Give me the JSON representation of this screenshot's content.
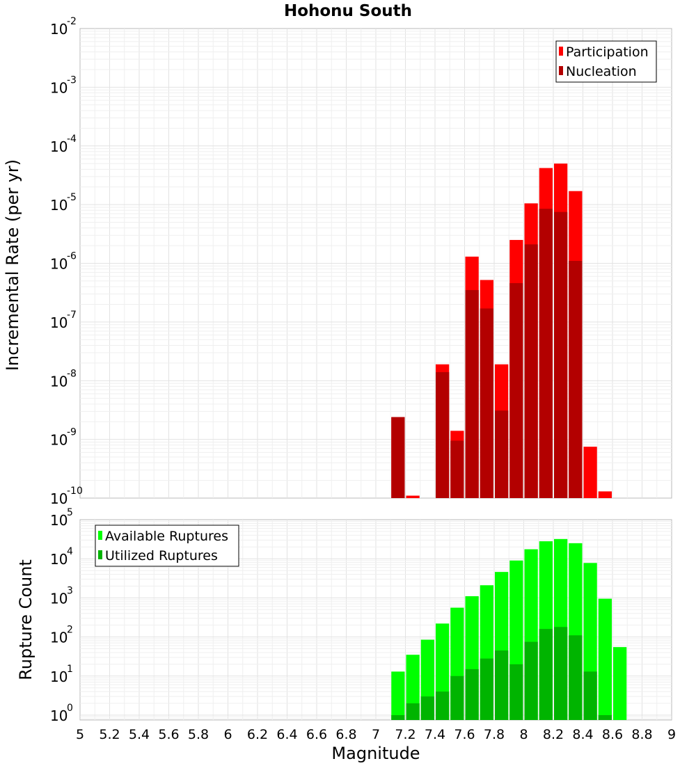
{
  "chart_data": [
    {
      "type": "bar",
      "title": "Hohonu South",
      "ylabel": "Incremental Rate (per yr)",
      "xlabel": "",
      "xlim": [
        5,
        9
      ],
      "ylim": [
        1e-10,
        0.01
      ],
      "yscale": "log",
      "ytick_exponents": [
        "-10",
        "-9",
        "-8",
        "-7",
        "-6",
        "-5",
        "-4",
        "-3",
        "-2"
      ],
      "ytick_base": "10",
      "bar_width": 0.1,
      "legend_position": "top-right",
      "series": [
        {
          "name": "Participation",
          "color": "#ff0000",
          "x": [
            7.15,
            7.25,
            7.45,
            7.55,
            7.65,
            7.75,
            7.85,
            7.95,
            8.05,
            8.15,
            8.25,
            8.35,
            8.45,
            8.55
          ],
          "values": [
            2.4e-09,
            1.1e-10,
            1.9e-08,
            1.4e-09,
            1.3e-06,
            5.2e-07,
            1.9e-08,
            2.5e-06,
            1.05e-05,
            4.2e-05,
            5e-05,
            1.7e-05,
            7.5e-10,
            1.3e-10
          ]
        },
        {
          "name": "Nucleation",
          "color": "#b30000",
          "x": [
            7.15,
            7.45,
            7.55,
            7.65,
            7.75,
            7.85,
            7.95,
            8.05,
            8.15,
            8.25,
            8.35
          ],
          "values": [
            2.4e-09,
            1.4e-08,
            9.5e-10,
            3.5e-07,
            1.7e-07,
            3.1e-09,
            4.6e-07,
            2.1e-06,
            8.5e-06,
            7.5e-06,
            1.1e-06
          ]
        }
      ]
    },
    {
      "type": "bar",
      "title": "",
      "ylabel": "Rupture Count",
      "xlabel": "Magnitude",
      "xlim": [
        5,
        9
      ],
      "ylim": [
        0.75,
        100000
      ],
      "yscale": "log",
      "ytick_exponents": [
        "0",
        "1",
        "2",
        "3",
        "4",
        "5"
      ],
      "ytick_base": "10",
      "xticks": [
        "5",
        "5.2",
        "5.4",
        "5.6",
        "5.8",
        "6",
        "6.2",
        "6.4",
        "6.6",
        "6.8",
        "7",
        "7.2",
        "7.4",
        "7.6",
        "7.8",
        "8",
        "8.2",
        "8.4",
        "8.6",
        "8.8",
        "9"
      ],
      "bar_width": 0.1,
      "legend_position": "top-left",
      "series": [
        {
          "name": "Available Ruptures",
          "color": "#00ff00",
          "x": [
            7.15,
            7.25,
            7.35,
            7.45,
            7.55,
            7.65,
            7.75,
            7.85,
            7.95,
            8.05,
            8.15,
            8.25,
            8.35,
            8.45,
            8.55,
            8.65
          ],
          "values": [
            13,
            35,
            85,
            220,
            560,
            1100,
            2100,
            4600,
            9000,
            17500,
            28000,
            32000,
            25000,
            7800,
            950,
            55
          ]
        },
        {
          "name": "Utilized Ruptures",
          "color": "#00b400",
          "x": [
            7.15,
            7.25,
            7.35,
            7.45,
            7.55,
            7.65,
            7.75,
            7.85,
            7.95,
            8.05,
            8.15,
            8.25,
            8.35,
            8.45,
            8.55
          ],
          "values": [
            1,
            2,
            3,
            4,
            10,
            15,
            28,
            45,
            20,
            75,
            160,
            180,
            110,
            13,
            1
          ]
        }
      ]
    }
  ]
}
